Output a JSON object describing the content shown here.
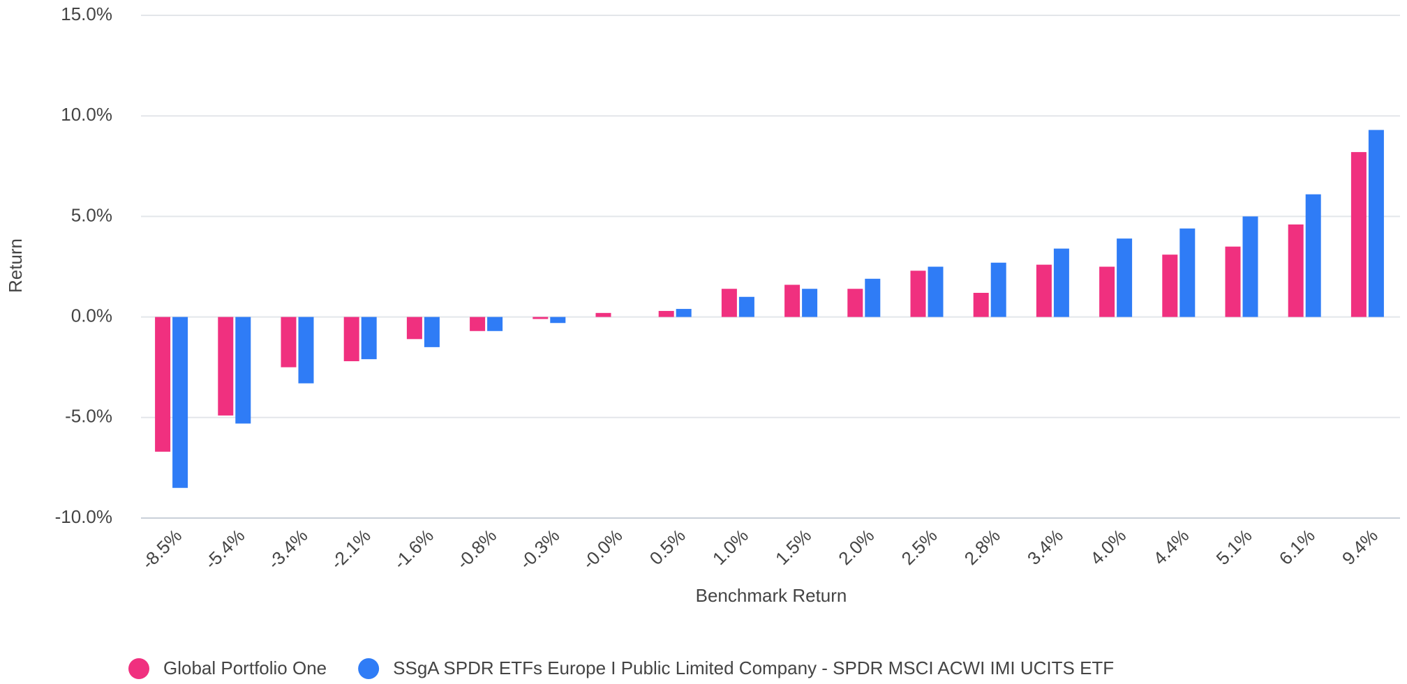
{
  "chart_data": {
    "type": "bar",
    "x_label": "Benchmark Return",
    "y_label": "Return",
    "categories": [
      "-8.5%",
      "-5.4%",
      "-3.4%",
      "-2.1%",
      "-1.6%",
      "-0.8%",
      "-0.3%",
      "-0.0%",
      "0.5%",
      "1.0%",
      "1.5%",
      "2.0%",
      "2.5%",
      "2.8%",
      "3.4%",
      "4.0%",
      "4.4%",
      "5.1%",
      "6.1%",
      "9.4%"
    ],
    "series": [
      {
        "name": "Global Portfolio One",
        "color": "#f0307f",
        "values": [
          -6.7,
          -4.9,
          -2.5,
          -2.2,
          -1.1,
          -0.7,
          -0.1,
          0.2,
          0.3,
          1.4,
          1.6,
          1.4,
          2.3,
          1.2,
          2.6,
          2.5,
          3.1,
          3.5,
          4.6,
          8.2
        ]
      },
      {
        "name": "SSgA SPDR ETFs Europe I Public Limited Company - SPDR MSCI ACWI IMI UCITS ETF",
        "color": "#2f7cf6",
        "values": [
          -8.5,
          -5.3,
          -3.3,
          -2.1,
          -1.5,
          -0.7,
          -0.3,
          0,
          0.4,
          1.0,
          1.4,
          1.9,
          2.5,
          2.7,
          3.4,
          3.9,
          4.4,
          5.0,
          6.1,
          9.3
        ]
      }
    ],
    "ylim": [
      -10,
      15
    ],
    "yticks": [
      {
        "value": -10,
        "label": "-10.0%"
      },
      {
        "value": -5,
        "label": "-5.0%"
      },
      {
        "value": 0,
        "label": "0.0%"
      },
      {
        "value": 5,
        "label": "5.0%"
      },
      {
        "value": 10,
        "label": "10.0%"
      },
      {
        "value": 15,
        "label": "15.0%"
      }
    ],
    "grid": true,
    "legend": "bottom"
  }
}
